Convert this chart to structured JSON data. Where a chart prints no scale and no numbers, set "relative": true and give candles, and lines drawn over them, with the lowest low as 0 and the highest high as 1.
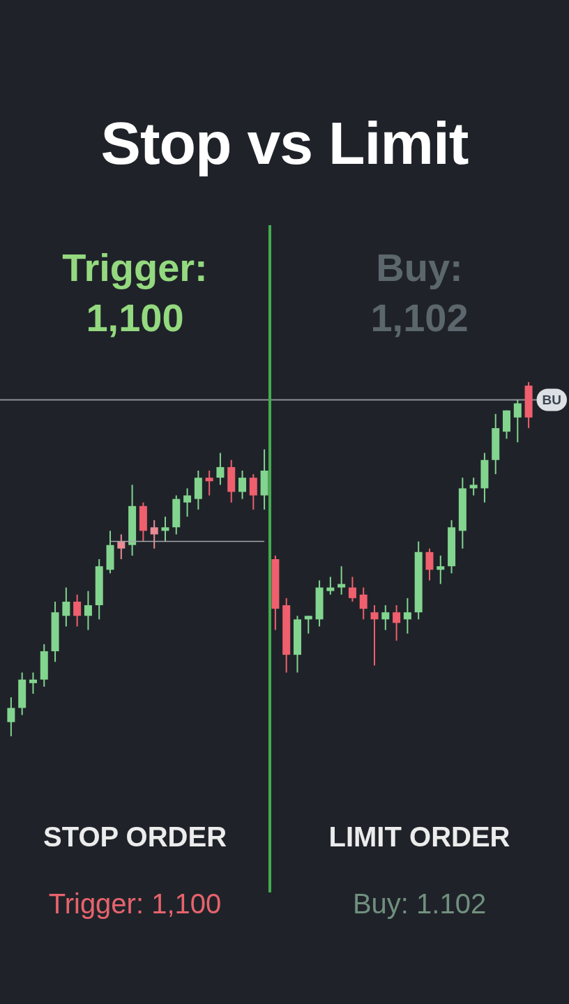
{
  "chart_data": {
    "type": "candlestick",
    "title": "Stop vs Limit",
    "annotations": [
      "Trigger: 1,100",
      "Buy: 1,102",
      "STOP ORDER",
      "LIMIT ORDER",
      "Trigger: 1,100",
      "Buy: 1.102"
    ],
    "categories": [
      null,
      null,
      null,
      null,
      null,
      null,
      null,
      null,
      null,
      null,
      null,
      null,
      null,
      null,
      null,
      null,
      null,
      null,
      null,
      null,
      null,
      null,
      null,
      null,
      null,
      null,
      null,
      null,
      null,
      null,
      null,
      null,
      null,
      null,
      null,
      null,
      null,
      null,
      null,
      null,
      null,
      null,
      null,
      null,
      null,
      null,
      null,
      null
    ],
    "relative": true,
    "series": [
      {
        "ohlc": [
          [
            0.04,
            0.11,
            0,
            0.08
          ],
          [
            0.08,
            0.18,
            0.06,
            0.16
          ],
          [
            0.15,
            0.18,
            0.12,
            0.16
          ],
          [
            0.16,
            0.26,
            0.14,
            0.24
          ],
          [
            0.24,
            0.38,
            0.21,
            0.35
          ],
          [
            0.34,
            0.42,
            0.31,
            0.38
          ],
          [
            0.38,
            0.4,
            0.31,
            0.34
          ],
          [
            0.34,
            0.41,
            0.3,
            0.37
          ],
          [
            0.37,
            0.5,
            0.33,
            0.48
          ],
          [
            0.47,
            0.58,
            0.46,
            0.54
          ],
          [
            0.55,
            0.57,
            0.5,
            0.53
          ],
          [
            0.54,
            0.71,
            0.51,
            0.65
          ],
          [
            0.65,
            0.66,
            0.55,
            0.58
          ],
          [
            0.59,
            0.61,
            0.53,
            0.57
          ],
          [
            0.58,
            0.62,
            0.55,
            0.59
          ],
          [
            0.59,
            0.68,
            0.57,
            0.67
          ],
          [
            0.66,
            0.7,
            0.62,
            0.68
          ],
          [
            0.67,
            0.75,
            0.64,
            0.73
          ],
          [
            0.73,
            0.75,
            0.68,
            0.72
          ],
          [
            0.73,
            0.8,
            0.71,
            0.76
          ],
          [
            0.76,
            0.78,
            0.66,
            0.69
          ],
          [
            0.69,
            0.75,
            0.67,
            0.73
          ],
          [
            0.73,
            0.74,
            0.64,
            0.68
          ],
          [
            0.68,
            0.81,
            0.64,
            0.75
          ],
          [
            0.5,
            0.51,
            0.3,
            0.36
          ],
          [
            0.37,
            0.39,
            0.18,
            0.23
          ],
          [
            0.23,
            0.34,
            0.18,
            0.33
          ],
          [
            0.33,
            0.34,
            0.29,
            0.34
          ],
          [
            0.33,
            0.44,
            0.31,
            0.42
          ],
          [
            0.41,
            0.45,
            0.4,
            0.42
          ],
          [
            0.42,
            0.48,
            0.4,
            0.43
          ],
          [
            0.42,
            0.45,
            0.38,
            0.39
          ],
          [
            0.4,
            0.42,
            0.33,
            0.36
          ],
          [
            0.35,
            0.37,
            0.2,
            0.33
          ],
          [
            0.33,
            0.37,
            0.3,
            0.35
          ],
          [
            0.35,
            0.37,
            0.27,
            0.32
          ],
          [
            0.33,
            0.39,
            0.29,
            0.35
          ],
          [
            0.35,
            0.55,
            0.33,
            0.52
          ],
          [
            0.52,
            0.53,
            0.44,
            0.47
          ],
          [
            0.47,
            0.51,
            0.43,
            0.48
          ],
          [
            0.48,
            0.61,
            0.46,
            0.59
          ],
          [
            0.58,
            0.73,
            0.53,
            0.7
          ],
          [
            0.7,
            0.73,
            0.68,
            0.71
          ],
          [
            0.7,
            0.8,
            0.66,
            0.78
          ],
          [
            0.78,
            0.91,
            0.74,
            0.87
          ],
          [
            0.86,
            0.92,
            0.84,
            0.92
          ],
          [
            0.9,
            0.95,
            0.83,
            0.94
          ],
          [
            0.99,
            1,
            0.87,
            0.9
          ]
        ],
        "colors": [
          "#82d48f",
          "#82d48f",
          "#82d48f",
          "#82d48f",
          "#82d48f",
          "#82d48f",
          "#ef5f6d",
          "#82d48f",
          "#82d48f",
          "#82d48f",
          "#e98b94",
          "#82d48f",
          "#ef5f6d",
          "#e98b94",
          "#82d48f",
          "#82d48f",
          "#82d48f",
          "#82d48f",
          "#ef5f6d",
          "#82d48f",
          "#ef5f6d",
          "#82d48f",
          "#ef5f6d",
          "#82d48f",
          "#ef5f6d",
          "#ef5f6d",
          "#82d48f",
          "#82d48f",
          "#82d48f",
          "#82d48f",
          "#82d48f",
          "#ef5f6d",
          "#ef5f6d",
          "#ef5f6d",
          "#82d48f",
          "#ef5f6d",
          "#82d48f",
          "#82d48f",
          "#ef5f6d",
          "#82d48f",
          "#82d48f",
          "#82d48f",
          "#82d48f",
          "#82d48f",
          "#82d48f",
          "#82d48f",
          "#82d48f",
          "#ef5f6d"
        ]
      },
      {
        "type": "line",
        "color": "#a4a7ac",
        "values": [
          null,
          null,
          null,
          null,
          null,
          null,
          null,
          null,
          null,
          0.55,
          0.55,
          0.55,
          0.55,
          0.55,
          0.55,
          0.55,
          0.55,
          0.55,
          0.55,
          0.55,
          0.55,
          0.55,
          0.55,
          0.55,
          null,
          null,
          null,
          null,
          null,
          null,
          null,
          null,
          null,
          null,
          null,
          null,
          null,
          null,
          null,
          null,
          null,
          null,
          null,
          null,
          null,
          null,
          null,
          null
        ]
      }
    ],
    "ref_lines": [
      {
        "axis": "y",
        "value": 0.95,
        "label": "BU",
        "color": "#8e9298"
      }
    ]
  }
}
